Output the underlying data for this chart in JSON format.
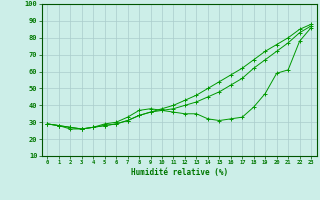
{
  "xlabel": "Humidité relative (%)",
  "x": [
    0,
    1,
    2,
    3,
    4,
    5,
    6,
    7,
    8,
    9,
    10,
    11,
    12,
    13,
    14,
    15,
    16,
    17,
    18,
    19,
    20,
    21,
    22,
    23
  ],
  "line1": [
    29,
    28,
    26,
    26,
    27,
    29,
    30,
    33,
    37,
    38,
    37,
    36,
    35,
    35,
    32,
    31,
    32,
    33,
    39,
    47,
    59,
    61,
    78,
    86
  ],
  "line2": [
    29,
    28,
    27,
    26,
    27,
    28,
    29,
    31,
    34,
    36,
    37,
    38,
    40,
    42,
    45,
    48,
    52,
    56,
    62,
    67,
    72,
    77,
    83,
    87
  ],
  "line3": [
    29,
    28,
    27,
    26,
    27,
    28,
    29,
    31,
    34,
    36,
    38,
    40,
    43,
    46,
    50,
    54,
    58,
    62,
    67,
    72,
    76,
    80,
    85,
    88
  ],
  "bg_color": "#cceee8",
  "grid_color": "#aacccc",
  "line_color": "#009900",
  "axis_color": "#007700",
  "ylim": [
    10,
    100
  ],
  "yticks": [
    10,
    20,
    30,
    40,
    50,
    60,
    70,
    80,
    90,
    100
  ],
  "xlim_min": -0.5,
  "xlim_max": 23.5
}
